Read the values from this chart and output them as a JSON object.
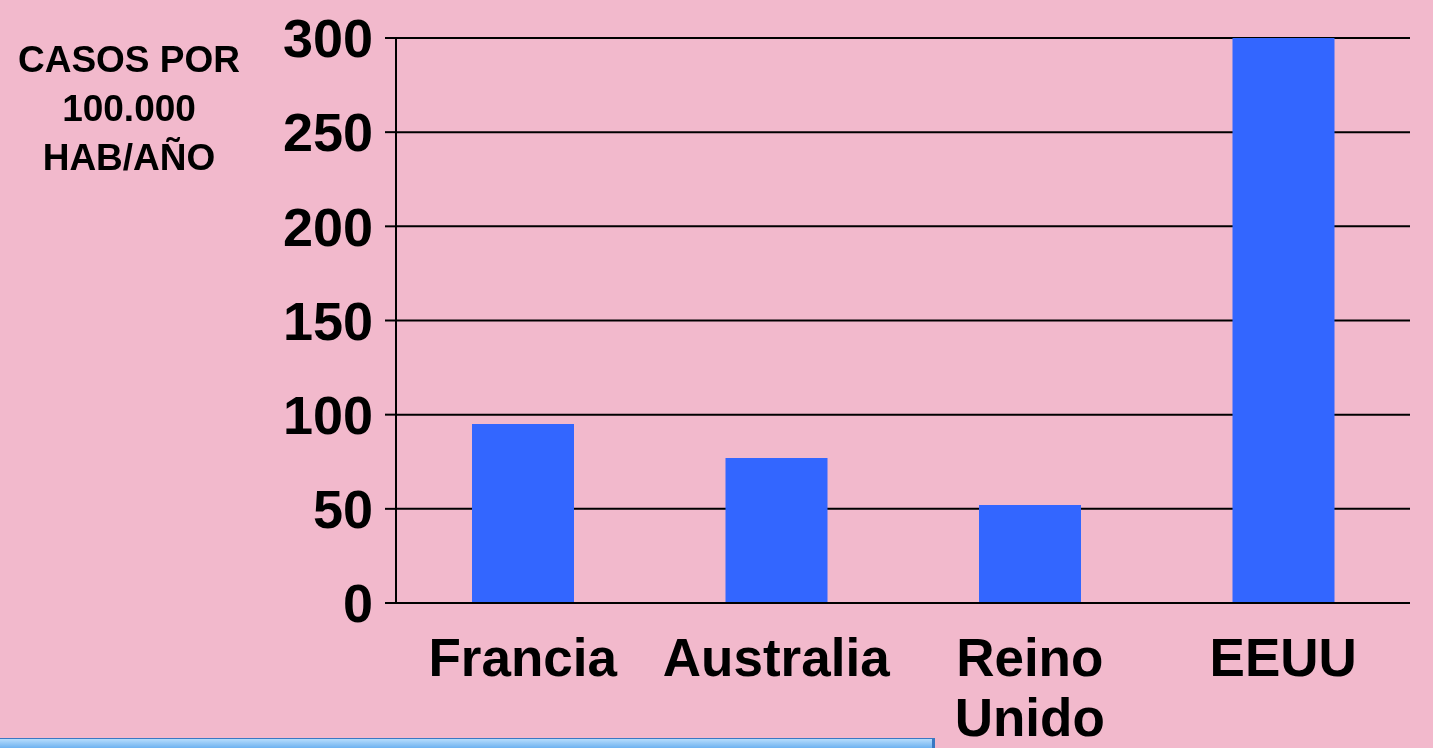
{
  "chart_data": {
    "type": "bar",
    "ylabel": "CASOS POR 100.000 HAB/AÑO",
    "categories": [
      "Francia",
      "Australia",
      "Reino Unido",
      "EEUU"
    ],
    "values": [
      95,
      77,
      52,
      300
    ],
    "color": "#3366ff",
    "ylim": [
      0,
      300
    ],
    "yticks": [
      0,
      50,
      100,
      150,
      200,
      250,
      300
    ],
    "grid": "y"
  }
}
